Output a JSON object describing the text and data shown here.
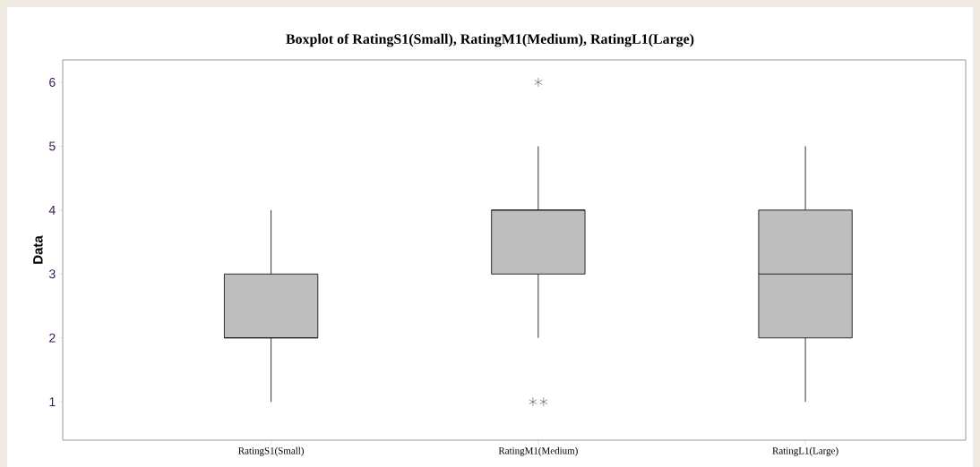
{
  "chart_data": {
    "type": "box",
    "title": "Boxplot of RatingS1(Small), RatingM1(Medium), RatingL1(Large)",
    "ylabel": "Data",
    "categories": [
      "RatingS1(Small)",
      "RatingM1(Medium)",
      "RatingL1(Large)"
    ],
    "boxes": [
      {
        "low": 1,
        "q1": 2,
        "median": 2,
        "q3": 3,
        "high": 4
      },
      {
        "low": 2,
        "q1": 3,
        "median": 4,
        "q3": 4,
        "high": 5,
        "outliers": [
          1,
          1,
          6
        ]
      },
      {
        "low": 1,
        "q1": 2,
        "median": 3,
        "q3": 4,
        "high": 5
      }
    ],
    "color": "#bebebe",
    "marker": "star",
    "ylim": [
      0.4,
      6.35
    ],
    "yticks": [
      1,
      2,
      3,
      4,
      5,
      6
    ]
  }
}
